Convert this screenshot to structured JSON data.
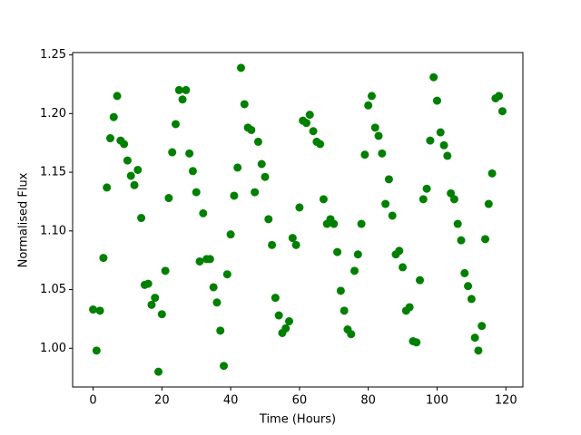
{
  "chart_data": {
    "type": "scatter",
    "x_label": "Time (Hours)",
    "y_label": "Normalised Flux",
    "color": "#008000",
    "x": [
      0,
      1,
      2,
      3,
      4,
      5,
      6,
      7,
      8,
      9,
      10,
      11,
      12,
      13,
      14,
      15,
      16,
      17,
      18,
      19,
      20,
      21,
      22,
      23,
      24,
      25,
      26,
      27,
      28,
      29,
      30,
      31,
      32,
      33,
      34,
      35,
      36,
      37,
      38,
      39,
      40,
      41,
      42,
      43,
      44,
      45,
      46,
      47,
      48,
      49,
      50,
      51,
      52,
      53,
      54,
      55,
      56,
      57,
      58,
      59,
      60,
      61,
      62,
      63,
      64,
      65,
      66,
      67,
      68,
      69,
      70,
      71,
      72,
      73,
      74,
      75,
      76,
      77,
      78,
      79,
      80,
      81,
      82,
      83,
      84,
      85,
      86,
      87,
      88,
      89,
      90,
      91,
      92,
      93,
      94,
      95,
      96,
      97,
      98,
      99,
      100,
      101,
      102,
      103,
      104,
      105,
      106,
      107,
      108,
      109,
      110,
      111,
      112,
      113,
      114,
      115,
      116,
      117,
      118,
      119
    ],
    "values": [
      1.033,
      0.998,
      1.032,
      1.077,
      1.137,
      1.179,
      1.197,
      1.215,
      1.177,
      1.174,
      1.16,
      1.147,
      1.139,
      1.152,
      1.111,
      1.054,
      1.055,
      1.037,
      1.043,
      0.98,
      1.029,
      1.066,
      1.128,
      1.167,
      1.191,
      1.22,
      1.212,
      1.22,
      1.166,
      1.151,
      1.133,
      1.074,
      1.115,
      1.076,
      1.076,
      1.052,
      1.039,
      1.015,
      0.985,
      1.063,
      1.097,
      1.13,
      1.154,
      1.239,
      1.208,
      1.188,
      1.186,
      1.133,
      1.176,
      1.157,
      1.146,
      1.11,
      1.088,
      1.043,
      1.028,
      1.013,
      1.017,
      1.023,
      1.094,
      1.088,
      1.12,
      1.194,
      1.192,
      1.199,
      1.185,
      1.176,
      1.174,
      1.127,
      1.106,
      1.11,
      1.106,
      1.082,
      1.049,
      1.032,
      1.016,
      1.012,
      1.066,
      1.08,
      1.106,
      1.165,
      1.207,
      1.215,
      1.188,
      1.181,
      1.166,
      1.123,
      1.144,
      1.113,
      1.08,
      1.083,
      1.069,
      1.032,
      1.035,
      1.006,
      1.005,
      1.058,
      1.127,
      1.136,
      1.177,
      1.231,
      1.211,
      1.184,
      1.173,
      1.164,
      1.132,
      1.127,
      1.106,
      1.092,
      1.064,
      1.053,
      1.042,
      1.009,
      0.998,
      1.019,
      1.093,
      1.123,
      1.149,
      1.213,
      1.215,
      1.202
    ],
    "xlim": [
      -5.95,
      124.95
    ],
    "ylim": [
      0.967,
      1.252
    ],
    "xticks": [
      0,
      20,
      40,
      60,
      80,
      100,
      120
    ],
    "yticks": [
      {
        "value": 1.0,
        "label": "1.00"
      },
      {
        "value": 1.05,
        "label": "1.05"
      },
      {
        "value": 1.1,
        "label": "1.10"
      },
      {
        "value": 1.15,
        "label": "1.15"
      },
      {
        "value": 1.2,
        "label": "1.20"
      },
      {
        "value": 1.25,
        "label": "1.25"
      }
    ]
  }
}
